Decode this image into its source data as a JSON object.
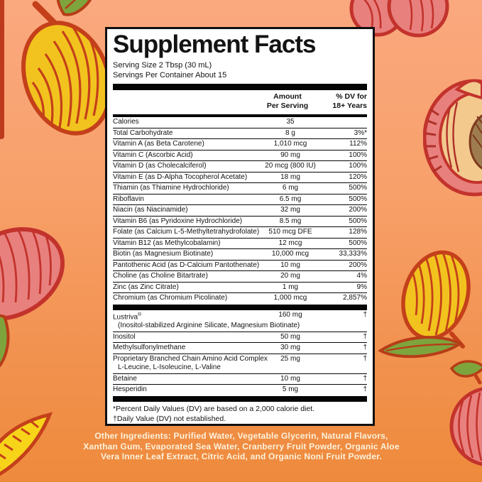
{
  "palette": {
    "background_top": "#FAA87F",
    "background_bottom": "#EE8A3C",
    "panel_background": "#FFFFFF",
    "panel_text": "#131313",
    "footer_text": "#FCF2DC",
    "mango_yellow": "#F2C31E",
    "mango_outline": "#C4401A",
    "peach_pink": "#E8807E",
    "peach_outline": "#C3332C",
    "peach_flesh": "#F3C98E",
    "peach_pit": "#9E7C50",
    "leaf_green": "#7EA43D"
  },
  "decorations": [
    "mango-icon",
    "peach-icon",
    "peach-half-icon",
    "peach-with-leaf-icon",
    "mango-slice-icon",
    "mango-with-leaf-icon",
    "peach-leaf-icon"
  ],
  "panel": {
    "title": "Supplement Facts",
    "serving_size": "Serving Size 2 Tbsp (30 mL)",
    "servings_per_container": "Servings Per Container About 15",
    "col_amount_line1": "Amount",
    "col_amount_line2": "Per Serving",
    "col_dv_line1": "% DV for",
    "col_dv_line2": "18+ Years",
    "main_rows": [
      {
        "name": "Calories",
        "amount": "35",
        "dv": ""
      },
      {
        "name": "Total Carbohydrate",
        "amount": "8 g",
        "dv": "3%*"
      },
      {
        "name": "Vitamin A (as Beta Carotene)",
        "amount": "1,010 mcg",
        "dv": "112%"
      },
      {
        "name": "Vitamin C (Ascorbic Acid)",
        "amount": "90 mg",
        "dv": "100%"
      },
      {
        "name": "Vitamin D (as Cholecalciferol)",
        "amount": "20 mcg (800 IU)",
        "dv": "100%"
      },
      {
        "name": "Vitamin E (as D-Alpha Tocopherol Acetate)",
        "amount": "18 mg",
        "dv": "120%"
      },
      {
        "name": "Thiamin (as Thiamine Hydrochloride)",
        "amount": "6 mg",
        "dv": "500%"
      },
      {
        "name": "Riboflavin",
        "amount": "6.5 mg",
        "dv": "500%"
      },
      {
        "name": "Niacin (as Niacinamide)",
        "amount": "32 mg",
        "dv": "200%"
      },
      {
        "name": "Vitamin B6 (as Pyridoxine Hydrochloride)",
        "amount": "8.5 mg",
        "dv": "500%"
      },
      {
        "name": "Folate (as Calcium L-5-Methyltetrahydrofolate)",
        "amount": "510 mcg DFE",
        "dv": "128%"
      },
      {
        "name": "Vitamin B12 (as Methylcobalamin)",
        "amount": "12 mcg",
        "dv": "500%"
      },
      {
        "name": "Biotin (as Magnesium Biotinate)",
        "amount": "10,000 mcg",
        "dv": "33,333%"
      },
      {
        "name": "Pantothenic Acid (as D-Calcium Pantothenate)",
        "amount": "10 mg",
        "dv": "200%"
      },
      {
        "name": "Choline (as Choline Bitartrate)",
        "amount": "20 mg",
        "dv": "4%"
      },
      {
        "name": "Zinc (as Zinc Citrate)",
        "amount": "1 mg",
        "dv": "9%"
      },
      {
        "name": "Chromium (as Chromium Picolinate)",
        "amount": "1,000 mcg",
        "dv": "2,857%"
      }
    ],
    "other_rows": [
      {
        "name": "Lustriva",
        "sup": "®",
        "sub": "(Inositol-stabilized Arginine Silicate, Magnesium Biotinate)",
        "amount": "160 mg",
        "dv": "†"
      },
      {
        "name": "Inositol",
        "amount": "50 mg",
        "dv": "†"
      },
      {
        "name": "Methylsulfonylmethane",
        "amount": "30 mg",
        "dv": "†"
      },
      {
        "name": "Proprietary Branched Chain Amino Acid Complex",
        "sub": "L-Leucine, L-Isoleucine, L-Valine",
        "amount": "25 mg",
        "dv": "†"
      },
      {
        "name": "Betaine",
        "amount": "10 mg",
        "dv": "†"
      },
      {
        "name": "Hesperidin",
        "amount": "5 mg",
        "dv": "†"
      }
    ],
    "footnotes": {
      "dv_note": "*Percent Daily Values (DV) are based on a 2,000 calorie diet.",
      "dagger_note": "†Daily Value (DV) not established."
    }
  },
  "footer": {
    "other_ingredients": "Other Ingredients: Purified Water, Vegetable Glycerin, Natural Flavors, Xanthan Gum, Evaporated Sea Water, Cranberry Fruit Powder, Organic Aloe Vera Inner Leaf Extract, Citric Acid, and Organic Noni Fruit Powder."
  }
}
